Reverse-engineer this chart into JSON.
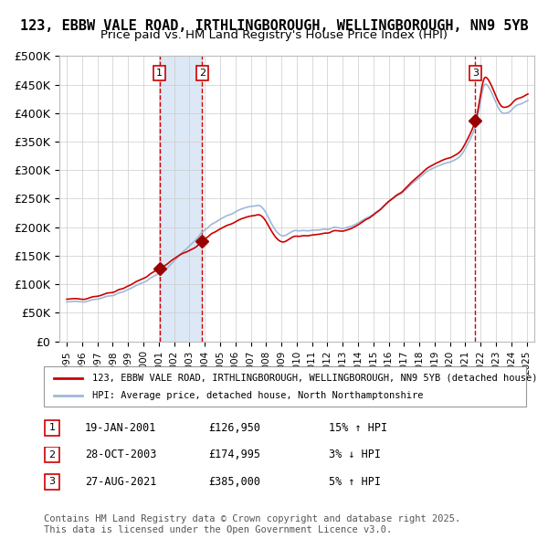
{
  "title_line1": "123, EBBW VALE ROAD, IRTHLINGBOROUGH, WELLINGBOROUGH, NN9 5YB",
  "title_line2": "Price paid vs. HM Land Registry's House Price Index (HPI)",
  "ylabel_values": [
    "£0",
    "£50K",
    "£100K",
    "£150K",
    "£200K",
    "£250K",
    "£300K",
    "£350K",
    "£400K",
    "£450K",
    "£500K"
  ],
  "ytick_values": [
    0,
    50000,
    100000,
    150000,
    200000,
    250000,
    300000,
    350000,
    400000,
    450000,
    500000
  ],
  "xlim_start": 1994.5,
  "xlim_end": 2025.5,
  "ylim_min": 0,
  "ylim_max": 500000,
  "hpi_color": "#a0b8d8",
  "price_color": "#cc0000",
  "shade_color": "#dce8f5",
  "marker_color": "#990000",
  "dashed_color": "#cc0000",
  "purchases": [
    {
      "label": "1",
      "date_str": "19-JAN-2001",
      "price": 126950,
      "hpi_pct": "15% ↑ HPI",
      "year": 2001.05
    },
    {
      "label": "2",
      "date_str": "28-OCT-2003",
      "price": 174995,
      "hpi_pct": "3% ↓ HPI",
      "year": 2003.83
    },
    {
      "label": "3",
      "date_str": "27-AUG-2021",
      "price": 385000,
      "hpi_pct": "5% ↑ HPI",
      "year": 2021.65
    }
  ],
  "legend_line1": "123, EBBW VALE ROAD, IRTHLINGBOROUGH, WELLINGBOROUGH, NN9 5YB (detached house)",
  "legend_line2": "HPI: Average price, detached house, North Northamptonshire",
  "footnote": "Contains HM Land Registry data © Crown copyright and database right 2025.\nThis data is licensed under the Open Government Licence v3.0.",
  "background_color": "#ffffff",
  "grid_color": "#cccccc",
  "title_fontsize": 11,
  "axis_fontsize": 9,
  "legend_fontsize": 8.5,
  "footnote_fontsize": 7.5
}
